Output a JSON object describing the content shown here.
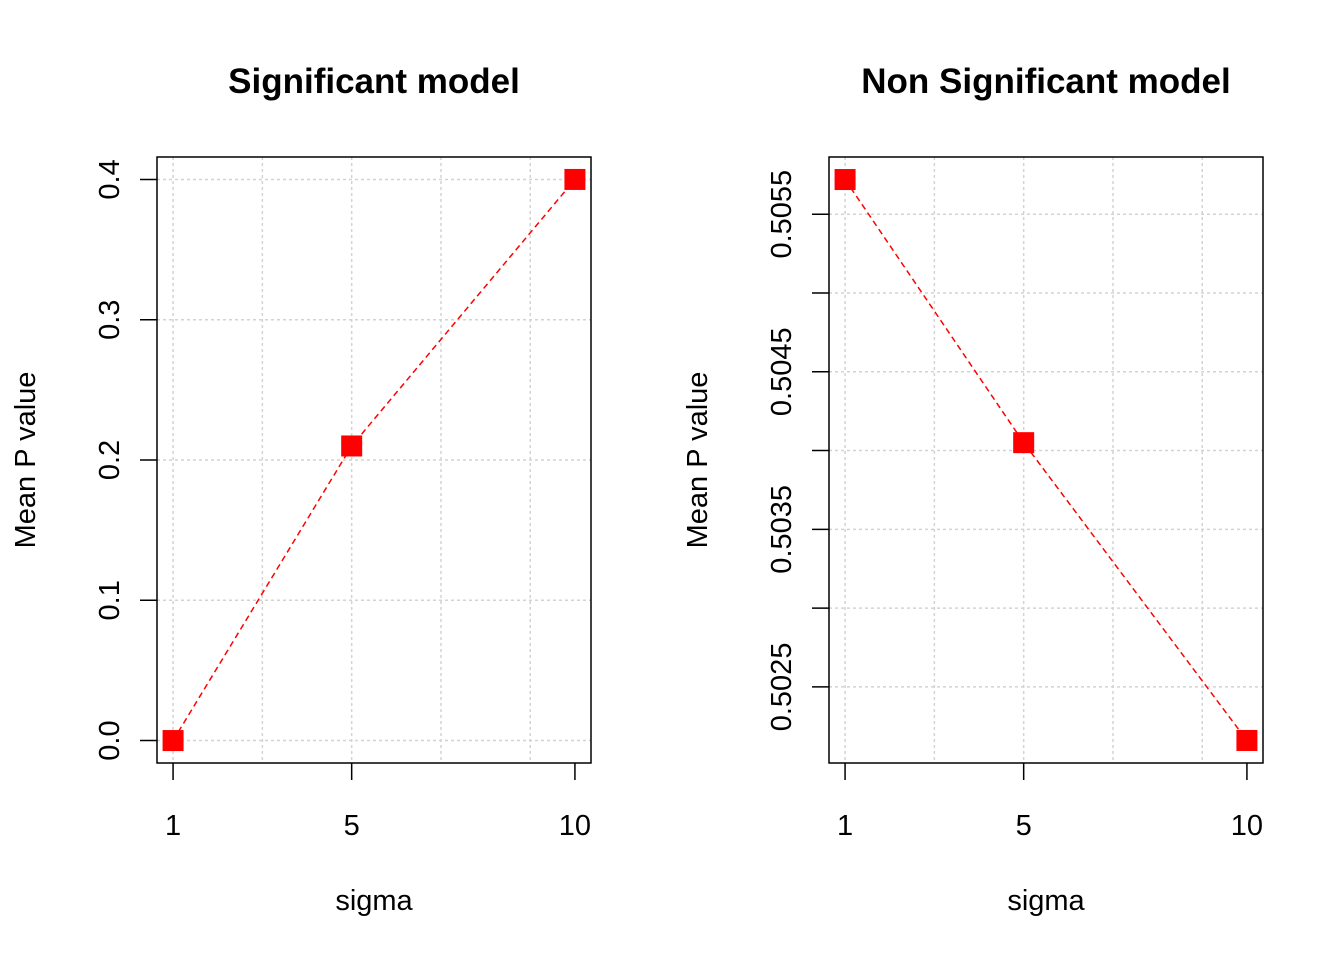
{
  "chart_data": [
    {
      "type": "line",
      "title": "Significant model",
      "xlabel": "sigma",
      "ylabel": "Mean P value",
      "x": [
        1,
        5,
        10
      ],
      "series": [
        {
          "values": [
            0.0,
            0.21,
            0.4
          ],
          "color": "#ff0000",
          "line_style": "dashed",
          "marker": "filled-square"
        }
      ],
      "xticks": [
        1,
        5,
        10
      ],
      "xtick_labels": [
        "1",
        "5",
        "10"
      ],
      "yticks": [
        0.0,
        0.1,
        0.2,
        0.3,
        0.4
      ],
      "ytick_labels": [
        "0.0",
        "0.1",
        "0.2",
        "0.3",
        "0.4"
      ],
      "xgrid": [
        1,
        3,
        5,
        7,
        9
      ],
      "ygrid": [
        0.0,
        0.1,
        0.2,
        0.3,
        0.4
      ],
      "xlim": [
        0.64,
        10.36
      ],
      "ylim": [
        -0.016,
        0.416
      ],
      "grid": true,
      "grid_color": "#d3d3d3"
    },
    {
      "type": "line",
      "title": "Non Significant model",
      "xlabel": "sigma",
      "ylabel": "Mean P value",
      "x": [
        1,
        5,
        10
      ],
      "series": [
        {
          "values": [
            0.50572,
            0.50405,
            0.50216
          ],
          "color": "#ff0000",
          "line_style": "dashed",
          "marker": "filled-square"
        }
      ],
      "xticks": [
        1,
        5,
        10
      ],
      "xtick_labels": [
        "1",
        "5",
        "10"
      ],
      "yticks": [
        0.5025,
        0.503,
        0.5035,
        0.504,
        0.5045,
        0.505,
        0.5055
      ],
      "ytick_labels": [
        "0.5025",
        "",
        "0.5035",
        "",
        "0.5045",
        "",
        "0.5055"
      ],
      "xgrid": [
        1,
        3,
        5,
        7,
        9
      ],
      "ygrid": [
        0.5025,
        0.503,
        0.5035,
        0.504,
        0.5045,
        0.505,
        0.5055
      ],
      "xlim": [
        0.64,
        10.36
      ],
      "ylim": [
        0.502017,
        0.505863
      ],
      "grid": true,
      "grid_color": "#d3d3d3"
    }
  ]
}
